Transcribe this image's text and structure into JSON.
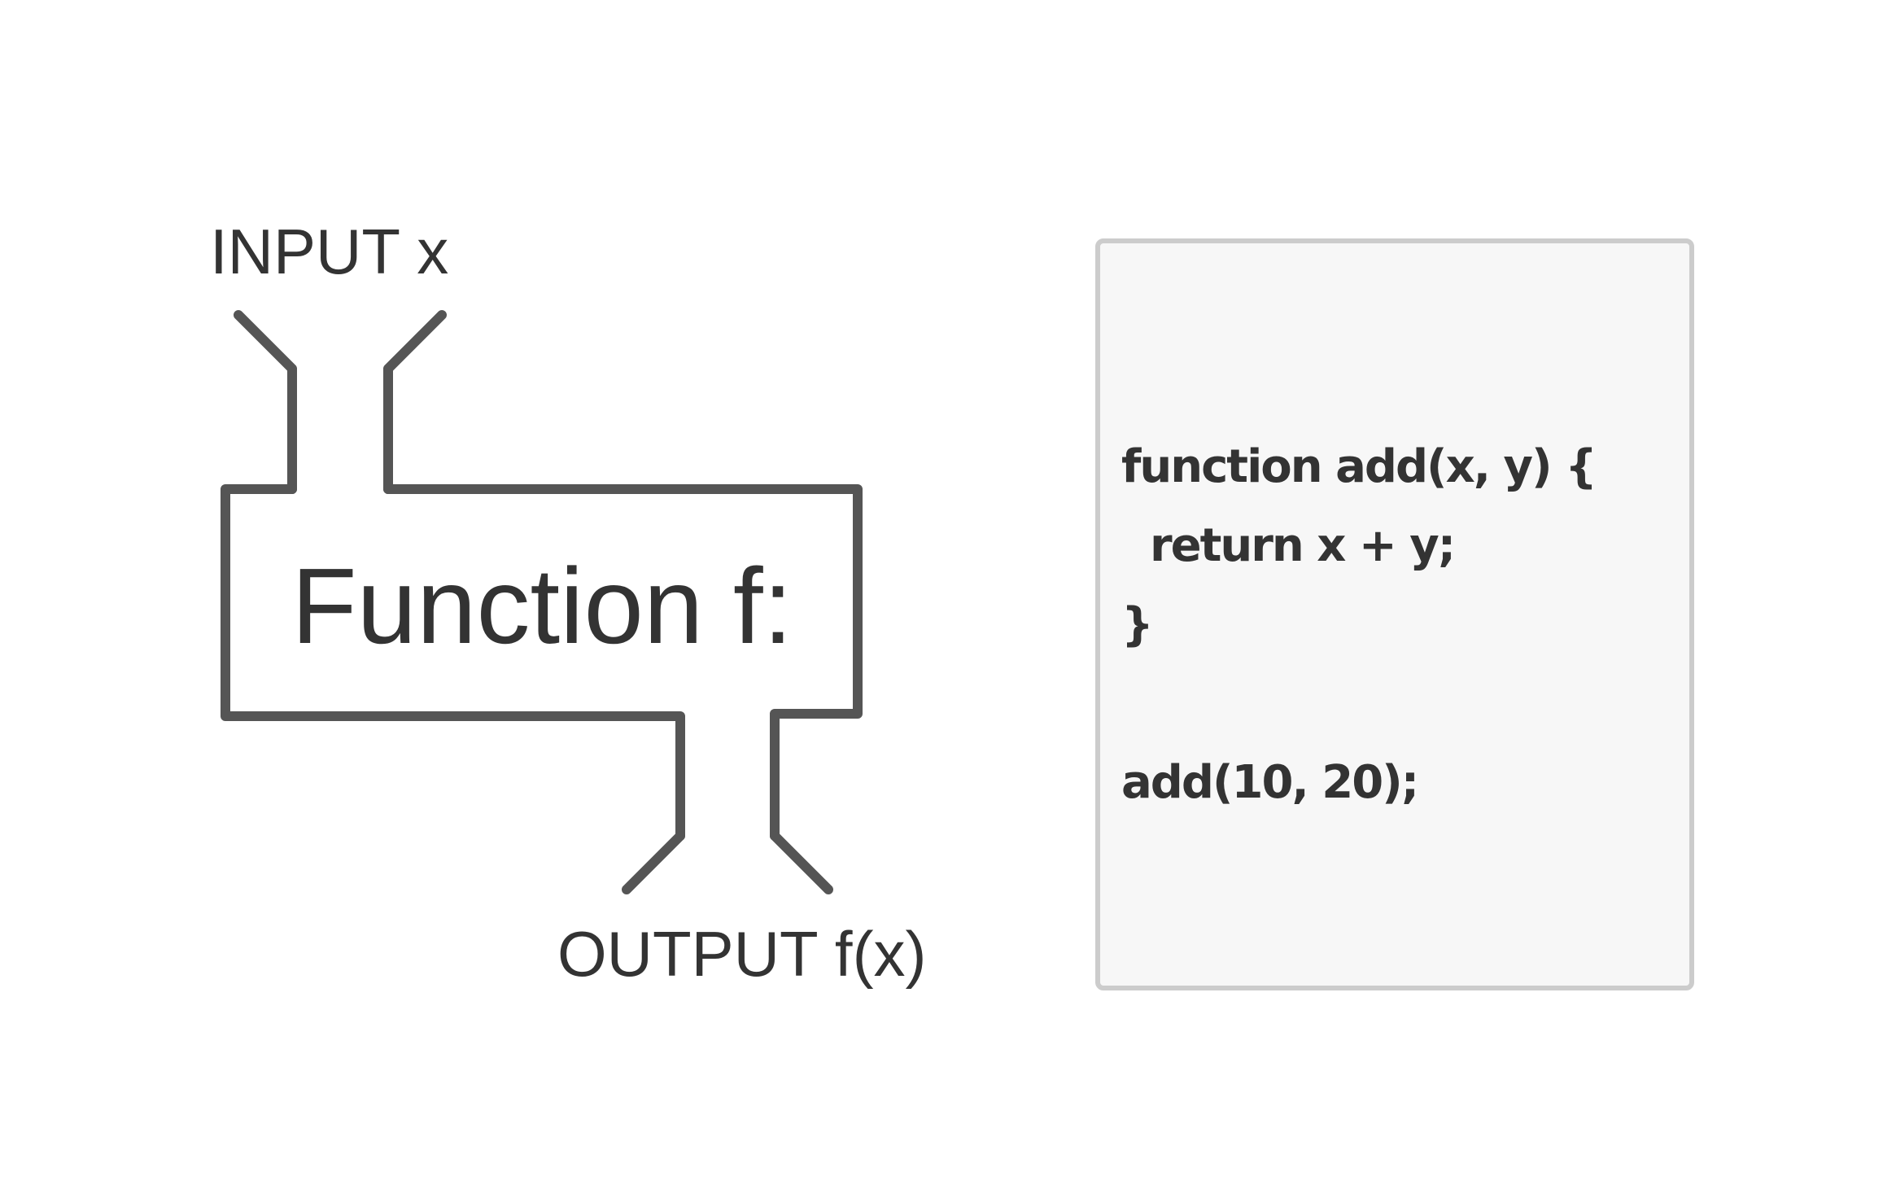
{
  "diagram": {
    "input_label": "INPUT x",
    "function_label": "Function f:",
    "output_label": "OUTPUT f(x)"
  },
  "code": {
    "lines": [
      "function add(x, y) {",
      "  return x + y;",
      "}",
      "",
      "add(10, 20);"
    ]
  },
  "colors": {
    "outline": "#555555",
    "text": "#333333",
    "panel_background": "#f7f7f7",
    "panel_border": "#cccccc"
  }
}
